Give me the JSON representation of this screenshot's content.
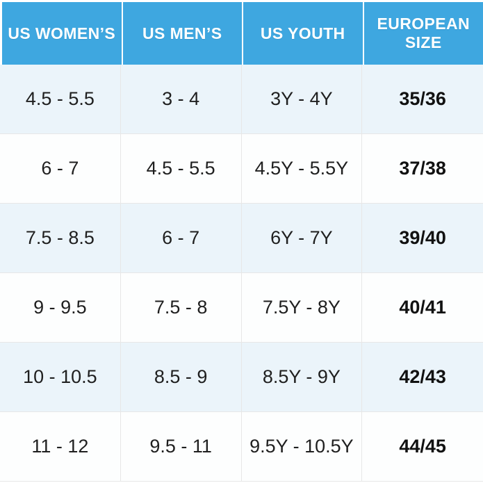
{
  "colors": {
    "header-bg": "#3EA7E0",
    "header-text": "#FFFFFF",
    "row-alt": "#EBF4FA",
    "row-plain": "#FDFEFE",
    "border": "#E7E7E7",
    "cell-text": "#1F1F1F",
    "eu-text": "#111111"
  },
  "chart_data": {
    "type": "table",
    "columns": [
      "US WOMEN’S",
      "US MEN’S",
      "US YOUTH",
      "EUROPEAN SIZE"
    ],
    "rows": [
      [
        "4.5 - 5.5",
        "3 - 4",
        "3Y - 4Y",
        "35/36"
      ],
      [
        "6 - 7",
        "4.5 - 5.5",
        "4.5Y - 5.5Y",
        "37/38"
      ],
      [
        "7.5 - 8.5",
        "6 - 7",
        "6Y - 7Y",
        "39/40"
      ],
      [
        "9 - 9.5",
        "7.5 - 8",
        "7.5Y - 8Y",
        "40/41"
      ],
      [
        "10 - 10.5",
        "8.5 - 9",
        "8.5Y - 9Y",
        "42/43"
      ],
      [
        "11 - 12",
        "9.5 - 11",
        "9.5Y - 10.5Y",
        "44/45"
      ]
    ]
  }
}
